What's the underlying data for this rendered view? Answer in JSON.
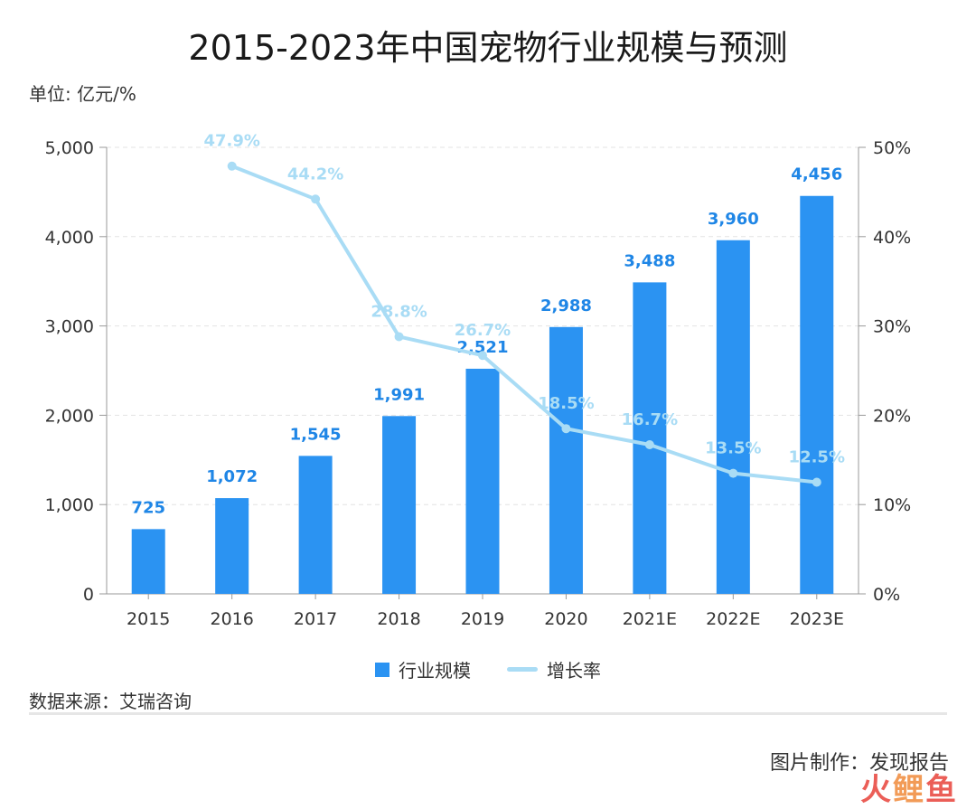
{
  "title": "2015-2023年中国宠物行业规模与预测",
  "unit_label": "单位: 亿元/%",
  "source": "数据来源：艾瑞咨询",
  "credit": "图片制作：发现报告",
  "watermark": [
    "火",
    "鲤",
    "鱼"
  ],
  "legend": {
    "bar_label": "行业规模",
    "line_label": "增长率"
  },
  "colors": {
    "bar": "#2b93f2",
    "line": "#a9dcf5",
    "bar_label": "#1f86e6",
    "line_label": "#a9dcf5",
    "grid": "#e3e3e3"
  },
  "chart_data": {
    "type": "bar",
    "title": "2015-2023年中国宠物行业规模与预测",
    "categories": [
      "2015",
      "2016",
      "2017",
      "2018",
      "2019",
      "2020",
      "2021E",
      "2022E",
      "2023E"
    ],
    "series": [
      {
        "name": "行业规模",
        "type": "bar",
        "axis": "left",
        "values": [
          725,
          1072,
          1545,
          1991,
          2521,
          2988,
          3488,
          3960,
          4456
        ],
        "labels": [
          "725",
          "1,072",
          "1,545",
          "1,991",
          "2,521",
          "2,988",
          "3,488",
          "3,960",
          "4,456"
        ]
      },
      {
        "name": "增长率",
        "type": "line",
        "axis": "right",
        "values": [
          null,
          47.9,
          44.2,
          28.8,
          26.7,
          18.5,
          16.7,
          13.5,
          12.5
        ],
        "labels": [
          "",
          "47.9%",
          "44.2%",
          "28.8%",
          "26.7%",
          "18.5%",
          "16.7%",
          "13.5%",
          "12.5%"
        ]
      }
    ],
    "y_left": {
      "ylim": [
        0,
        5000
      ],
      "ticks": [
        0,
        1000,
        2000,
        3000,
        4000,
        5000
      ],
      "tick_labels": [
        "0",
        "1,000",
        "2,000",
        "3,000",
        "4,000",
        "5,000"
      ]
    },
    "y_right": {
      "ylim": [
        0,
        50
      ],
      "ticks": [
        0,
        10,
        20,
        30,
        40,
        50
      ],
      "tick_labels": [
        "0%",
        "10%",
        "20%",
        "30%",
        "40%",
        "50%"
      ]
    },
    "grid": true,
    "legend_position": "bottom-center"
  }
}
